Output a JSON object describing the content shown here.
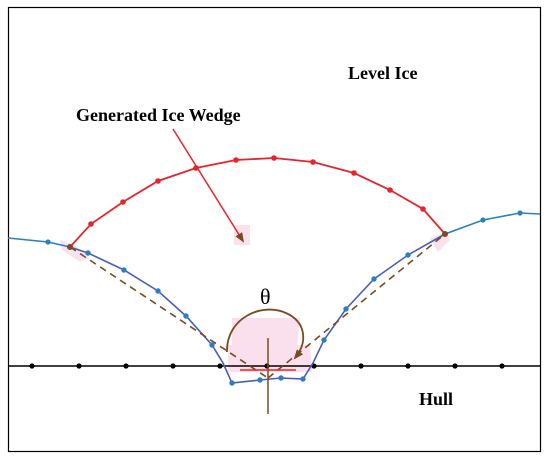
{
  "labels": {
    "level_ice": "Level Ice",
    "generated_wedge": "Generated Ice Wedge",
    "hull": "Hull",
    "angle": "θ"
  },
  "colors": {
    "frame": "#000000",
    "wedge": "#e8242a",
    "ice_edge": "#2a7fc1",
    "polygon": "#4a5db8",
    "dashed": "#7b4a1e",
    "angle_arc": "#7b4a1e",
    "hull": "#000000",
    "shadow": "#f6c8e0"
  }
}
